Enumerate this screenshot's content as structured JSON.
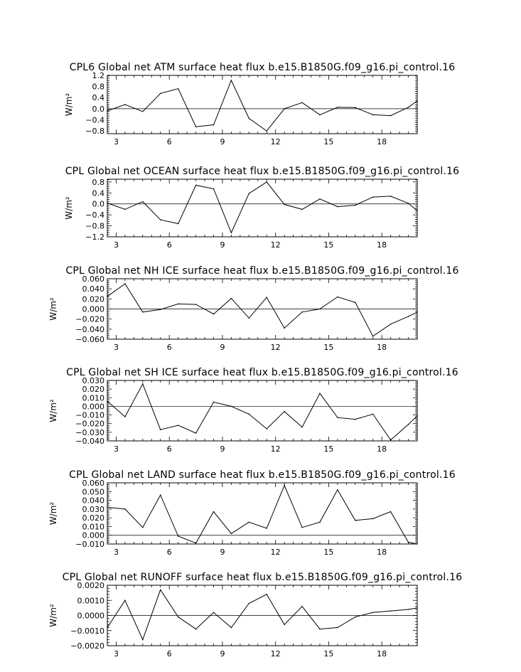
{
  "chart_data": [
    {
      "type": "line",
      "title": "CPL6 Global net ATM surface heat flux b.e15.B1850G.f09_g16.pi_control.16",
      "ylabel": "W/m²",
      "xlabel": "",
      "xlim": [
        2.5,
        20.0
      ],
      "ylim": [
        -0.9,
        1.2
      ],
      "xticks": [
        3,
        6,
        9,
        12,
        15,
        18
      ],
      "xtick_labels": [
        "3",
        "6",
        "9",
        "12",
        "15",
        "18"
      ],
      "yticks": [
        -0.8,
        -0.4,
        0.0,
        0.4,
        0.8,
        1.2
      ],
      "ytick_labels": [
        "−0.8",
        "−0.4",
        "0.0",
        "0.4",
        "0.8",
        "1.2"
      ],
      "zero_line": true,
      "series": [
        {
          "x": [
            2.5,
            3.5,
            4.5,
            5.5,
            6.5,
            7.5,
            8.5,
            9.5,
            10.5,
            11.5,
            12.5,
            13.5,
            14.5,
            15.5,
            16.5,
            17.5,
            18.5,
            19.5,
            20.0
          ],
          "y": [
            -0.08,
            0.15,
            -0.1,
            0.55,
            0.72,
            -0.65,
            -0.58,
            1.02,
            -0.35,
            -0.8,
            0.0,
            0.22,
            -0.22,
            0.05,
            0.04,
            -0.22,
            -0.25,
            0.05,
            0.28
          ]
        }
      ]
    },
    {
      "type": "line",
      "title": "CPL Global net OCEAN surface heat flux b.e15.B1850G.f09_g16.pi_control.16",
      "ylabel": "W/m²",
      "xlabel": "",
      "xlim": [
        2.5,
        20.0
      ],
      "ylim": [
        -1.2,
        0.9
      ],
      "xticks": [
        3,
        6,
        9,
        12,
        15,
        18
      ],
      "xtick_labels": [
        "3",
        "6",
        "9",
        "12",
        "15",
        "18"
      ],
      "yticks": [
        -1.2,
        -0.8,
        -0.4,
        0.0,
        0.4,
        0.8
      ],
      "ytick_labels": [
        "−1.2",
        "−0.8",
        "−0.4",
        "0.0",
        "0.4",
        "0.8"
      ],
      "zero_line": true,
      "series": [
        {
          "x": [
            2.5,
            3.5,
            4.5,
            5.5,
            6.5,
            7.5,
            8.5,
            9.5,
            10.5,
            11.5,
            12.5,
            13.5,
            14.5,
            15.5,
            16.5,
            17.5,
            18.5,
            19.5,
            20.0
          ],
          "y": [
            0.03,
            -0.2,
            0.08,
            -0.58,
            -0.72,
            0.68,
            0.55,
            -1.05,
            0.38,
            0.8,
            -0.02,
            -0.2,
            0.18,
            -0.1,
            -0.05,
            0.25,
            0.28,
            0.02,
            -0.25
          ]
        }
      ]
    },
    {
      "type": "line",
      "title": "CPL Global net NH ICE surface heat flux b.e15.B1850G.f09_g16.pi_control.16",
      "ylabel": "W/m²",
      "xlabel": "",
      "xlim": [
        2.5,
        20.0
      ],
      "ylim": [
        -0.06,
        0.06
      ],
      "xticks": [
        3,
        6,
        9,
        12,
        15,
        18
      ],
      "xtick_labels": [
        "3",
        "6",
        "9",
        "12",
        "15",
        "18"
      ],
      "yticks": [
        -0.06,
        -0.04,
        -0.02,
        0.0,
        0.02,
        0.04,
        0.06
      ],
      "ytick_labels": [
        "−0.060",
        "−0.040",
        "−0.020",
        "0.000",
        "0.020",
        "0.040",
        "0.060"
      ],
      "zero_line": true,
      "series": [
        {
          "x": [
            2.5,
            3.5,
            4.5,
            5.5,
            6.5,
            7.5,
            8.5,
            9.5,
            10.5,
            11.5,
            12.5,
            13.5,
            14.5,
            15.5,
            16.5,
            17.5,
            18.5,
            19.5,
            20.0
          ],
          "y": [
            0.025,
            0.05,
            -0.006,
            -0.001,
            0.01,
            0.009,
            -0.01,
            0.021,
            -0.018,
            0.023,
            -0.038,
            -0.006,
            0.0,
            0.024,
            0.013,
            -0.054,
            -0.03,
            -0.015,
            -0.006
          ]
        }
      ]
    },
    {
      "type": "line",
      "title": "CPL Global net SH ICE surface heat flux b.e15.B1850G.f09_g16.pi_control.16",
      "ylabel": "W/m²",
      "xlabel": "",
      "xlim": [
        2.5,
        20.0
      ],
      "ylim": [
        -0.04,
        0.03
      ],
      "xticks": [
        3,
        6,
        9,
        12,
        15,
        18
      ],
      "xtick_labels": [
        "3",
        "6",
        "9",
        "12",
        "15",
        "18"
      ],
      "yticks": [
        -0.04,
        -0.03,
        -0.02,
        -0.01,
        0.0,
        0.01,
        0.02,
        0.03
      ],
      "ytick_labels": [
        "−0.040",
        "−0.030",
        "−0.020",
        "−0.010",
        "0.000",
        "0.010",
        "0.020",
        "0.030"
      ],
      "zero_line": true,
      "series": [
        {
          "x": [
            2.5,
            3.5,
            4.5,
            5.5,
            6.5,
            7.5,
            8.5,
            9.5,
            10.5,
            11.5,
            12.5,
            13.5,
            14.5,
            15.5,
            16.5,
            17.5,
            18.5,
            19.5,
            20.0
          ],
          "y": [
            0.006,
            -0.012,
            0.026,
            -0.027,
            -0.022,
            -0.031,
            0.005,
            0.0,
            -0.009,
            -0.026,
            -0.006,
            -0.024,
            0.015,
            -0.013,
            -0.015,
            -0.009,
            -0.039,
            -0.021,
            -0.011
          ]
        }
      ]
    },
    {
      "type": "line",
      "title": "CPL Global net LAND surface heat flux b.e15.B1850G.f09_g16.pi_control.16",
      "ylabel": "W/m²",
      "xlabel": "",
      "xlim": [
        2.5,
        20.0
      ],
      "ylim": [
        -0.01,
        0.06
      ],
      "xticks": [
        3,
        6,
        9,
        12,
        15,
        18
      ],
      "xtick_labels": [
        "3",
        "6",
        "9",
        "12",
        "15",
        "18"
      ],
      "yticks": [
        -0.01,
        0.0,
        0.01,
        0.02,
        0.03,
        0.04,
        0.05,
        0.06
      ],
      "ytick_labels": [
        "−0.010",
        "0.000",
        "0.010",
        "0.020",
        "0.030",
        "0.040",
        "0.050",
        "0.060"
      ],
      "zero_line": true,
      "series": [
        {
          "x": [
            2.5,
            3.5,
            4.5,
            5.5,
            6.5,
            7.5,
            8.5,
            9.5,
            10.5,
            11.5,
            12.5,
            13.5,
            14.5,
            15.5,
            16.5,
            17.5,
            18.5,
            19.5,
            20.0
          ],
          "y": [
            0.032,
            0.03,
            0.009,
            0.046,
            -0.001,
            -0.009,
            0.027,
            0.002,
            0.015,
            0.008,
            0.057,
            0.009,
            0.015,
            0.052,
            0.017,
            0.019,
            0.027,
            -0.008,
            -0.01
          ]
        }
      ]
    },
    {
      "type": "line",
      "title": "CPL Global net RUNOFF surface heat flux b.e15.B1850G.f09_g16.pi_control.16",
      "ylabel": "W/m²",
      "xlabel": "",
      "xlim": [
        2.5,
        20.0
      ],
      "ylim": [
        -0.002,
        0.002
      ],
      "xticks": [
        3,
        6,
        9,
        12,
        15,
        18
      ],
      "xtick_labels": [
        "3",
        "6",
        "9",
        "12",
        "15",
        "18"
      ],
      "yticks": [
        -0.002,
        -0.001,
        0.0,
        0.001,
        0.002
      ],
      "ytick_labels": [
        "−0.0020",
        "−0.0010",
        "0.0000",
        "0.0010",
        "0.0020"
      ],
      "zero_line": true,
      "series": [
        {
          "x": [
            2.5,
            3.5,
            4.5,
            5.5,
            6.5,
            7.5,
            8.5,
            9.5,
            10.5,
            11.5,
            12.5,
            13.5,
            14.5,
            15.5,
            16.5,
            17.5,
            18.5,
            19.5,
            20.0
          ],
          "y": [
            -0.0008,
            0.001,
            -0.0016,
            0.0017,
            -0.0001,
            -0.0009,
            0.0002,
            -0.0008,
            0.0008,
            0.0014,
            -0.0006,
            0.0006,
            -0.0009,
            -0.0008,
            -0.0001,
            0.0002,
            0.0003,
            0.0004,
            0.0005
          ]
        }
      ]
    }
  ]
}
